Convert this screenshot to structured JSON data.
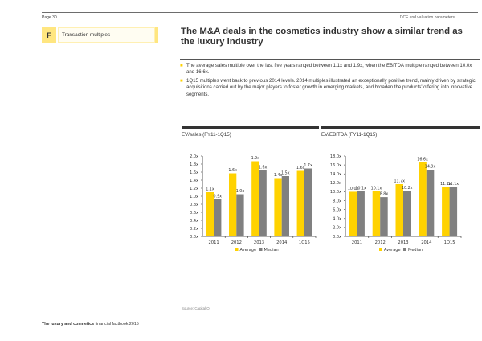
{
  "header": {
    "page_label": "Page 30",
    "section_label": "DCF and valuation parameters"
  },
  "section": {
    "letter": "F",
    "title": "Transaction multiples"
  },
  "headline": "The M&A deals in the cosmetics industry show a similar trend as the luxury industry",
  "bullets": [
    "The average sales multiple over the last five years ranged between 1.1x and 1.9x, when the EBITDA multiple ranged between 10.0x and 16.6x.",
    "1Q15 multiples went back to previous 2014 levels. 2014 multiples illustrated an exceptionally positive trend, mainly driven by strategic acquisitions carried out by the major players to foster growth in emerging markets, and broaden the products' offering into innovative segments."
  ],
  "colors": {
    "average": "#ffd200",
    "median": "#808080",
    "accent_light": "#ffe680"
  },
  "chart_data": [
    {
      "type": "bar",
      "title": "EV/sales (FY11-1Q15)",
      "categories": [
        "2011",
        "2012",
        "2013",
        "2014",
        "1Q15"
      ],
      "series": [
        {
          "name": "Average",
          "values": [
            1.1,
            1.57,
            1.87,
            1.45,
            1.63
          ],
          "labels": [
            "1.1x",
            "1.6x",
            "1.9x",
            "1.4x",
            "1.6x"
          ]
        },
        {
          "name": "Median",
          "values": [
            0.92,
            1.05,
            1.64,
            1.5,
            1.69
          ],
          "labels": [
            "0.9x",
            "1.0x",
            "1.6x",
            "1.5x",
            "1.7x"
          ]
        }
      ],
      "ylim": [
        0,
        2.0
      ],
      "yticks": [
        0.0,
        0.2,
        0.4,
        0.6,
        0.8,
        1.0,
        1.2,
        1.4,
        1.6,
        1.8,
        2.0
      ],
      "ytick_labels": [
        "0.0x",
        "0.2x",
        "0.4x",
        "0.6x",
        "0.8x",
        "1.0x",
        "1.2x",
        "1.4x",
        "1.6x",
        "1.8x",
        "2.0x"
      ],
      "xlabel": "",
      "ylabel": "",
      "grid": false,
      "legend": "bottom"
    },
    {
      "type": "bar",
      "title": "EV/EBITDA (FY11-1Q15)",
      "categories": [
        "2011",
        "2012",
        "2013",
        "2014",
        "1Q15"
      ],
      "series": [
        {
          "name": "Average",
          "values": [
            10.0,
            10.1,
            11.7,
            16.6,
            11.1
          ],
          "labels": [
            "10.0x",
            "10.1x",
            "11.7x",
            "16.6x",
            "11.1x"
          ]
        },
        {
          "name": "Median",
          "values": [
            10.1,
            8.8,
            10.2,
            14.9,
            11.1
          ],
          "labels": [
            "10.1x",
            "8.8x",
            "10.2x",
            "14.9x",
            "11.1x"
          ]
        }
      ],
      "ylim": [
        0,
        18.0
      ],
      "yticks": [
        0,
        2,
        4,
        6,
        8,
        10,
        12,
        14,
        16,
        18
      ],
      "ytick_labels": [
        "0.0x",
        "2.0x",
        "4.0x",
        "6.0x",
        "8.0x",
        "10.0x",
        "12.0x",
        "14.0x",
        "16.0x",
        "18.0x"
      ],
      "xlabel": "",
      "ylabel": "",
      "grid": false,
      "legend": "bottom"
    }
  ],
  "source": "Source: CapitalIQ",
  "footer": {
    "bold": "The luxury and cosmetics",
    "rest": " financial factbook 2015"
  }
}
